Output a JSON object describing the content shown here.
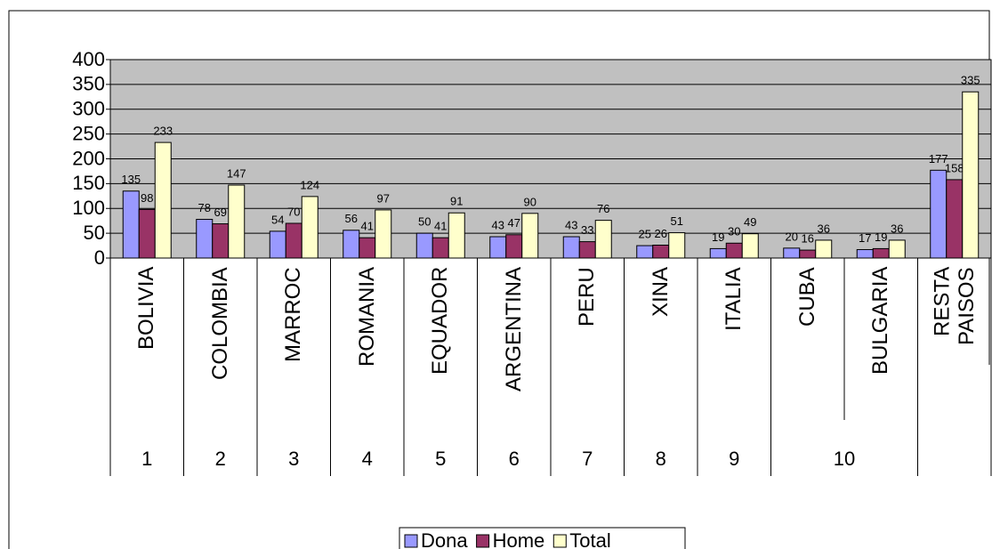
{
  "chart_data": {
    "type": "bar",
    "categories": [
      "BOLIVIA",
      "COLOMBIA",
      "MARROC",
      "ROMANIA",
      "EQUADOR",
      "ARGENTINA",
      "PERU",
      "XINA",
      "ITALIA",
      "CUBA",
      "BULGARIA",
      "RESTA PAISOS"
    ],
    "groups": [
      {
        "label": "1",
        "members": [
          0
        ]
      },
      {
        "label": "2",
        "members": [
          1
        ]
      },
      {
        "label": "3",
        "members": [
          2
        ]
      },
      {
        "label": "4",
        "members": [
          3
        ]
      },
      {
        "label": "5",
        "members": [
          4
        ]
      },
      {
        "label": "6",
        "members": [
          5
        ]
      },
      {
        "label": "7",
        "members": [
          6
        ]
      },
      {
        "label": "8",
        "members": [
          7
        ]
      },
      {
        "label": "9",
        "members": [
          8
        ]
      },
      {
        "label": "10",
        "members": [
          9,
          10
        ]
      }
    ],
    "series": [
      {
        "name": "Dona",
        "color": "#9999ff",
        "values": [
          135,
          78,
          54,
          56,
          50,
          43,
          43,
          25,
          19,
          20,
          17,
          177
        ]
      },
      {
        "name": "Home",
        "color": "#993366",
        "values": [
          98,
          69,
          70,
          41,
          41,
          47,
          33,
          26,
          30,
          16,
          19,
          158
        ]
      },
      {
        "name": "Total",
        "color": "#ffffcc",
        "values": [
          233,
          147,
          124,
          97,
          91,
          90,
          76,
          51,
          49,
          36,
          36,
          335
        ]
      }
    ],
    "ylim": [
      0,
      400
    ],
    "yticks": [
      0,
      50,
      100,
      150,
      200,
      250,
      300,
      350,
      400
    ],
    "grid": true,
    "plot_background": "#c0c0c0",
    "legend": "bottom"
  }
}
